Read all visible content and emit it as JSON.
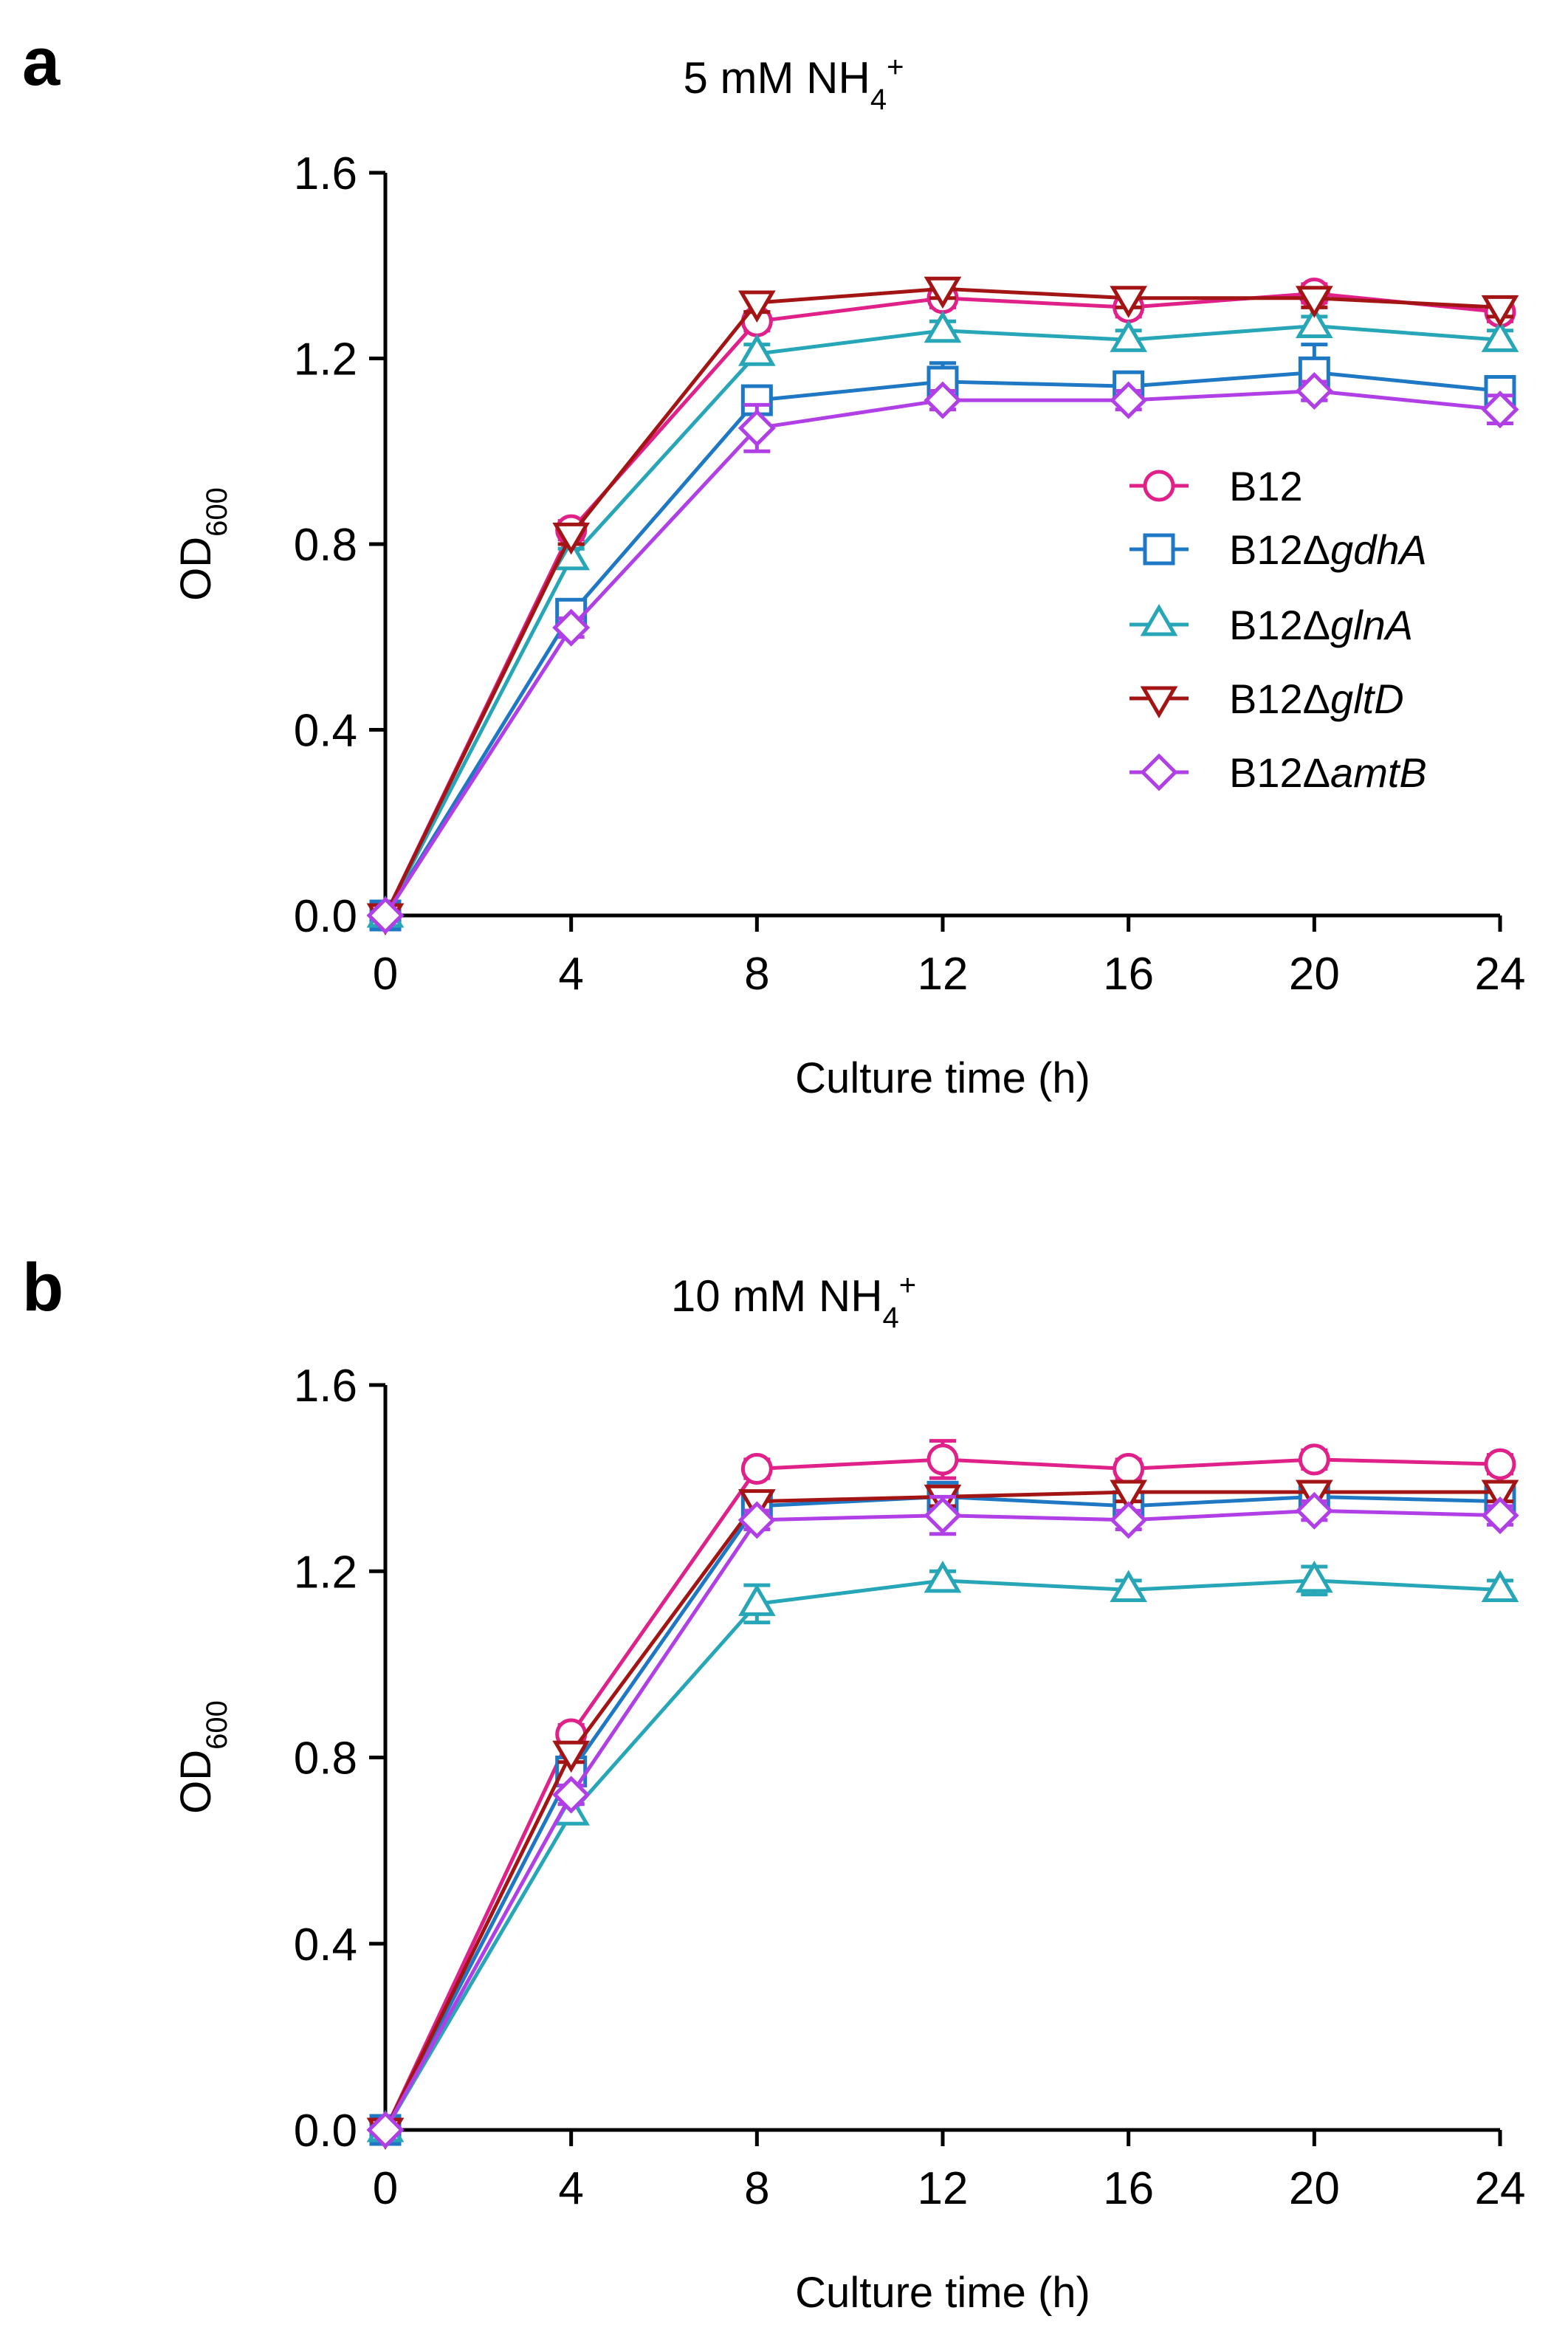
{
  "chart_data": [
    {
      "type": "line",
      "panel_label": "a",
      "title": {
        "main": "5 mM NH",
        "sub": "4",
        "sup": "+"
      },
      "xlabel": "Culture time (h)",
      "ylabel": {
        "main": "OD",
        "sub": "600"
      },
      "xlim": [
        0,
        24
      ],
      "ylim": [
        0,
        1.6
      ],
      "xticks": [
        0,
        4,
        8,
        12,
        16,
        20,
        24
      ],
      "yticks": [
        0.0,
        0.4,
        0.8,
        1.2,
        1.6
      ],
      "ytick_labels": [
        "0.0",
        "0.4",
        "0.8",
        "1.2",
        "1.6"
      ],
      "x": [
        0,
        4,
        8,
        12,
        16,
        20,
        24
      ],
      "legend_position": "right",
      "grid": false,
      "series": [
        {
          "name": "B12",
          "name_main": "B12",
          "name_italic": "",
          "color": "#e0218a",
          "marker": "circle",
          "values": [
            0.0,
            0.83,
            1.28,
            1.33,
            1.31,
            1.34,
            1.3
          ],
          "errors": [
            0,
            0.02,
            0.02,
            0.02,
            0.02,
            0.02,
            0.02
          ]
        },
        {
          "name": "B12ΔgdhA",
          "name_main": "B12Δ",
          "name_italic": "gdhA",
          "color": "#1f78c4",
          "marker": "square",
          "values": [
            0.0,
            0.65,
            1.11,
            1.15,
            1.14,
            1.17,
            1.13
          ],
          "errors": [
            0,
            0.02,
            0.02,
            0.04,
            0.02,
            0.06,
            0.02
          ]
        },
        {
          "name": "B12ΔglnA",
          "name_main": "B12Δ",
          "name_italic": "glnA",
          "color": "#27a6b8",
          "marker": "triangle-up",
          "values": [
            0.0,
            0.77,
            1.21,
            1.26,
            1.24,
            1.27,
            1.24
          ],
          "errors": [
            0,
            0.02,
            0.02,
            0.02,
            0.02,
            0.02,
            0.02
          ]
        },
        {
          "name": "B12ΔgltD",
          "name_main": "B12Δ",
          "name_italic": "gltD",
          "color": "#a31515",
          "marker": "triangle-down",
          "values": [
            0.0,
            0.82,
            1.32,
            1.35,
            1.33,
            1.33,
            1.31
          ],
          "errors": [
            0,
            0.02,
            0.02,
            0.02,
            0.02,
            0.02,
            0.02
          ]
        },
        {
          "name": "B12ΔamtB",
          "name_main": "B12Δ",
          "name_italic": "amtB",
          "color": "#b13fe6",
          "marker": "diamond",
          "values": [
            0.0,
            0.62,
            1.05,
            1.11,
            1.11,
            1.13,
            1.09
          ],
          "errors": [
            0,
            0.02,
            0.05,
            0.02,
            0.02,
            0.02,
            0.03
          ]
        }
      ]
    },
    {
      "type": "line",
      "panel_label": "b",
      "title": {
        "main": "10 mM NH",
        "sub": "4",
        "sup": "+"
      },
      "xlabel": "Culture time (h)",
      "ylabel": {
        "main": "OD",
        "sub": "600"
      },
      "xlim": [
        0,
        24
      ],
      "ylim": [
        0,
        1.6
      ],
      "xticks": [
        0,
        4,
        8,
        12,
        16,
        20,
        24
      ],
      "yticks": [
        0.0,
        0.4,
        0.8,
        1.2,
        1.6
      ],
      "ytick_labels": [
        "0.0",
        "0.4",
        "0.8",
        "1.2",
        "1.6"
      ],
      "x": [
        0,
        4,
        8,
        12,
        16,
        20,
        24
      ],
      "legend_position": "none",
      "grid": false,
      "series": [
        {
          "name": "B12",
          "color": "#e0218a",
          "marker": "circle",
          "values": [
            0.0,
            0.85,
            1.42,
            1.44,
            1.42,
            1.44,
            1.43
          ],
          "errors": [
            0,
            0.02,
            0.02,
            0.04,
            0.02,
            0.02,
            0.02
          ]
        },
        {
          "name": "B12ΔgdhA",
          "color": "#1f78c4",
          "marker": "square",
          "values": [
            0.0,
            0.77,
            1.34,
            1.36,
            1.34,
            1.36,
            1.35
          ],
          "errors": [
            0,
            0.02,
            0.02,
            0.03,
            0.02,
            0.02,
            0.02
          ]
        },
        {
          "name": "B12ΔglnA",
          "color": "#27a6b8",
          "marker": "triangle-up",
          "values": [
            0.0,
            0.68,
            1.13,
            1.18,
            1.16,
            1.18,
            1.16
          ],
          "errors": [
            0,
            0.02,
            0.04,
            0.02,
            0.02,
            0.03,
            0.02
          ]
        },
        {
          "name": "B12ΔgltD",
          "color": "#a31515",
          "marker": "triangle-down",
          "values": [
            0.0,
            0.81,
            1.35,
            1.36,
            1.37,
            1.37,
            1.37
          ],
          "errors": [
            0,
            0.02,
            0.02,
            0.02,
            0.02,
            0.02,
            0.02
          ]
        },
        {
          "name": "B12ΔamtB",
          "color": "#b13fe6",
          "marker": "diamond",
          "values": [
            0.0,
            0.72,
            1.31,
            1.32,
            1.31,
            1.33,
            1.32
          ],
          "errors": [
            0,
            0.02,
            0.02,
            0.04,
            0.02,
            0.02,
            0.02
          ]
        }
      ]
    }
  ]
}
